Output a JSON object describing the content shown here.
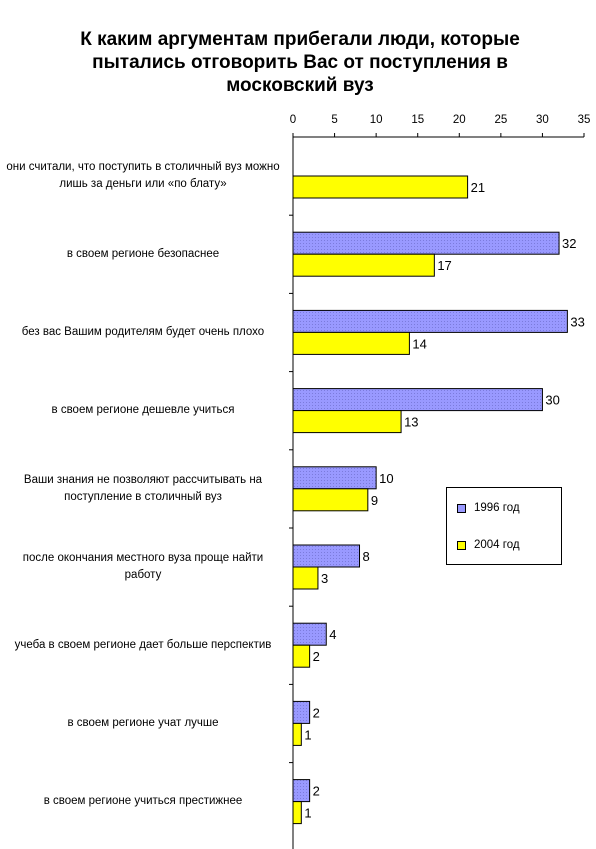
{
  "chart_data": {
    "type": "bar",
    "orientation": "horizontal",
    "title": "К каким аргументам прибегали люди, которые пытались отговорить Вас от поступления в московский вуз",
    "categories": [
      "они считали, что поступить в столичный вуз можно лишь за деньги или «по блату»",
      "в своем регионе безопаснее",
      "без вас Вашим родителям будет очень плохо",
      "в своем регионе дешевле учиться",
      "Ваши знания не позволяют рассчитывать на поступление в столичный вуз",
      "после окончания местного вуза проще найти работу",
      "учеба в своем регионе дает больше перспектив",
      "в своем регионе учат лучше",
      "в своем регионе учиться престижнее"
    ],
    "series": [
      {
        "name": "1996 год",
        "color": "#9999ff",
        "values": [
          null,
          32,
          33,
          30,
          10,
          8,
          4,
          2,
          2
        ]
      },
      {
        "name": "2004 год",
        "color": "#ffff00",
        "values": [
          21,
          17,
          14,
          13,
          9,
          3,
          2,
          1,
          1
        ]
      }
    ],
    "xlim": [
      0,
      35
    ],
    "xticks": [
      "0",
      "5",
      "10",
      "15",
      "20",
      "25",
      "30",
      "35"
    ],
    "xaxis_position": "top",
    "grid": false,
    "legend_position": "right"
  }
}
